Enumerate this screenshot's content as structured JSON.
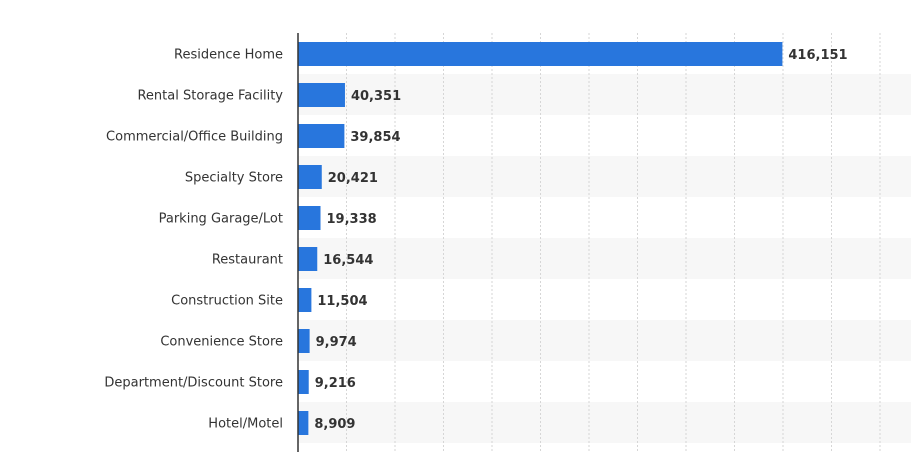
{
  "chart_data": {
    "type": "bar",
    "orientation": "horizontal",
    "categories": [
      "Residence Home",
      "Rental Storage Facility",
      "Commercial/Office Building",
      "Specialty Store",
      "Parking Garage/Lot",
      "Restaurant",
      "Construction Site",
      "Convenience Store",
      "Department/Discount Store",
      "Hotel/Motel"
    ],
    "values": [
      416151,
      40351,
      39854,
      20421,
      19338,
      16544,
      11504,
      9974,
      9216,
      8909
    ],
    "value_labels": [
      "416,151",
      "40,351",
      "39,854",
      "20,421",
      "19,338",
      "16,544",
      "11,504",
      "9,974",
      "9,216",
      "8,909"
    ],
    "xlim": [
      0,
      500000
    ],
    "grid": true,
    "title": "",
    "xlabel": "",
    "ylabel": "",
    "colors": {
      "bar": "#2876dd",
      "stripe": "#f7f7f7",
      "grid": "#d6d6d6",
      "axis": "#333333",
      "text": "#333333"
    }
  }
}
